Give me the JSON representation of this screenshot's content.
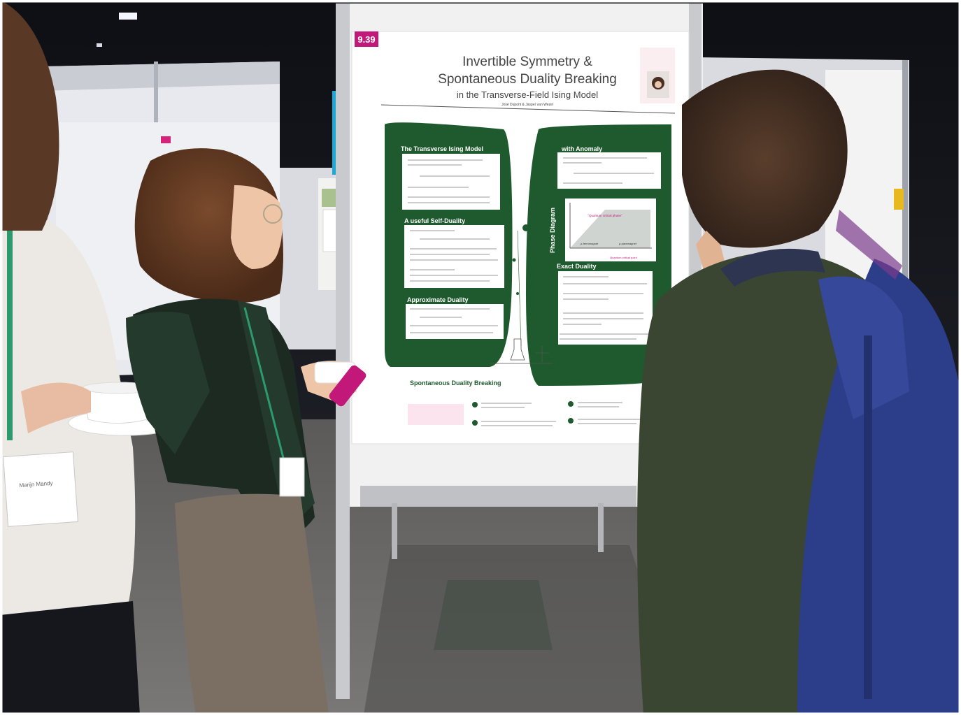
{
  "poster": {
    "number": "9.39",
    "title_line1": "Invertible Symmetry &",
    "title_line2": "Spontaneous Duality Breaking",
    "subtitle": "in the Transverse-Field Ising Model",
    "authors": "José Dupont & Jasper van Wezel",
    "sections": {
      "transverse_ising": "The Transverse Ising Model",
      "self_duality": "A useful Self-Duality",
      "approx_duality": "Approximate Duality",
      "with_anomaly": "with Anomaly",
      "phase_diagram": "Phase Diagram",
      "exact_duality": "Exact Duality",
      "spontaneous": "Spontaneous Duality Breaking"
    },
    "phase_labels": {
      "critical": "\"Quantum critical phase\"",
      "ferro": "ρ-ferromagnet",
      "para": "ρ-paramagnet",
      "point": "Quantum critical point"
    }
  },
  "name_badge": {
    "name": "Marijn Mandy"
  },
  "colors": {
    "poster_green": "#1f5a2e",
    "poster_magenta": "#c2187a",
    "floor": "#6e6c6a",
    "booth_dark": "#1b1d24"
  }
}
